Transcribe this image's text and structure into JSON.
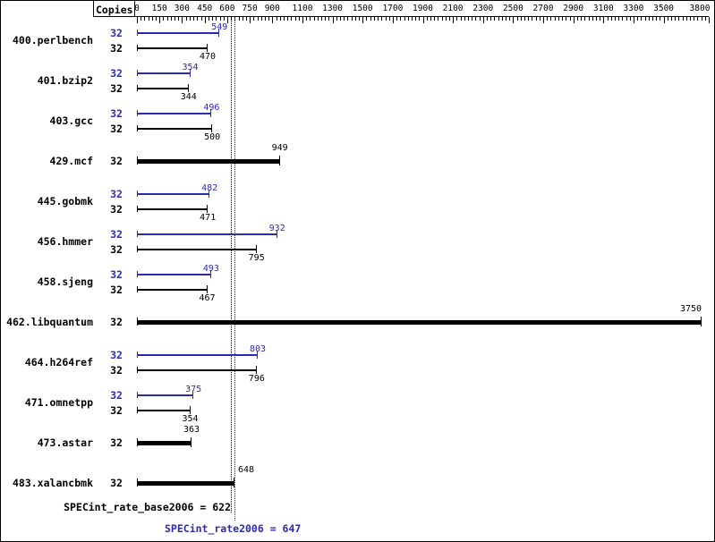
{
  "header": {
    "copies_label": "Copies"
  },
  "chart_data": {
    "type": "bar",
    "orientation": "horizontal",
    "axis": {
      "min": 0,
      "max": 3800,
      "tick_labels": [
        0,
        150,
        300,
        450,
        600,
        750,
        900,
        1100,
        1300,
        1500,
        1700,
        1900,
        2100,
        2300,
        2500,
        2700,
        2900,
        3100,
        3300,
        3500,
        3800
      ],
      "minor_tick_step": 25
    },
    "benchmarks": [
      {
        "name": "400.perlbench",
        "copies": 32,
        "peak": 549,
        "base": 470
      },
      {
        "name": "401.bzip2",
        "copies": 32,
        "peak": 354,
        "base": 344
      },
      {
        "name": "403.gcc",
        "copies": 32,
        "peak": 496,
        "base": 500
      },
      {
        "name": "429.mcf",
        "copies": 32,
        "single": 949
      },
      {
        "name": "445.gobmk",
        "copies": 32,
        "peak": 482,
        "base": 471
      },
      {
        "name": "456.hmmer",
        "copies": 32,
        "peak": 932,
        "base": 795
      },
      {
        "name": "458.sjeng",
        "copies": 32,
        "peak": 493,
        "base": 467
      },
      {
        "name": "462.libquantum",
        "copies": 32,
        "single": 3750
      },
      {
        "name": "464.h264ref",
        "copies": 32,
        "peak": 803,
        "base": 796
      },
      {
        "name": "471.omnetpp",
        "copies": 32,
        "peak": 375,
        "base": 354
      },
      {
        "name": "473.astar",
        "copies": 32,
        "single": 363
      },
      {
        "name": "483.xalancbmk",
        "copies": 32,
        "single": 648
      }
    ],
    "summary": {
      "base_label": "SPECint_rate_base2006 = 622",
      "base_value": 622,
      "peak_label": "SPECint_rate2006 = 647",
      "peak_value": 647
    },
    "colors": {
      "peak": "#2b2bb4",
      "base": "#000000",
      "background": "#ffffff"
    }
  }
}
